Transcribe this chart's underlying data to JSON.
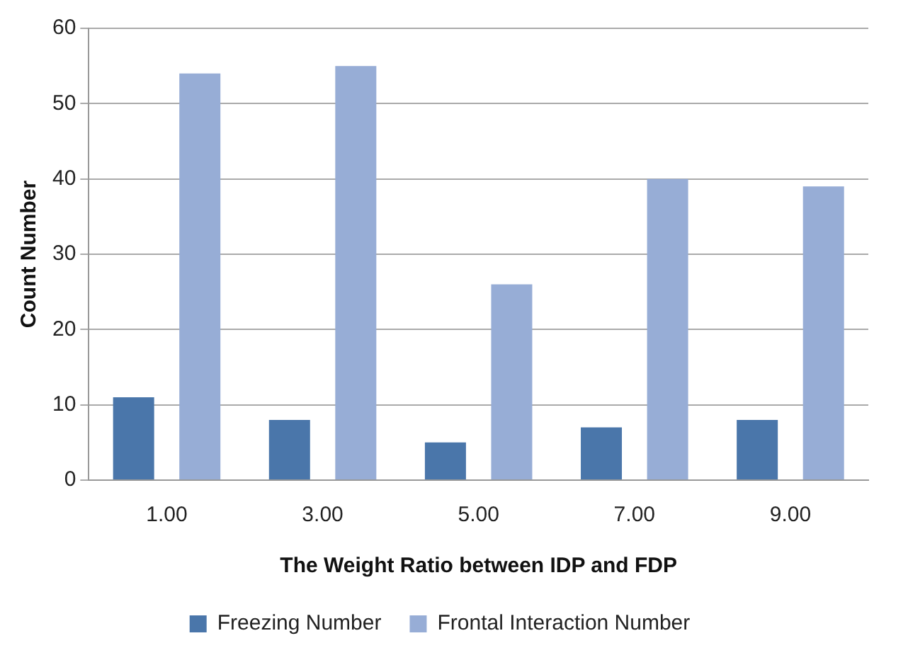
{
  "chart_data": {
    "type": "bar",
    "xlabel": "The Weight Ratio between IDP and FDP",
    "ylabel": "Count Number",
    "categories": [
      "1.00",
      "3.00",
      "5.00",
      "7.00",
      "9.00"
    ],
    "series": [
      {
        "name": "Freezing Number",
        "color": "#4a76aa",
        "values": [
          11,
          8,
          5,
          7,
          8
        ]
      },
      {
        "name": "Frontal Interaction Number",
        "color": "#97add6",
        "values": [
          54,
          55,
          26,
          40,
          39
        ]
      }
    ],
    "ylim": [
      0,
      60
    ],
    "yticks": [
      0,
      10,
      20,
      30,
      40,
      50,
      60
    ],
    "grid": "y",
    "legend": "bottom"
  }
}
